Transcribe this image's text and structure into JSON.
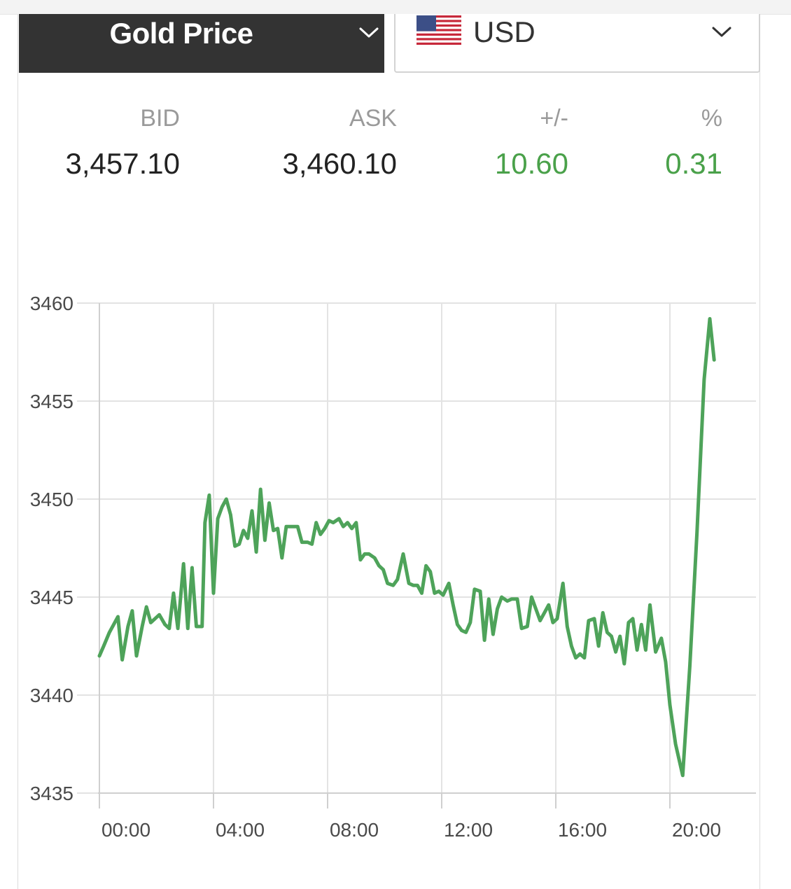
{
  "header": {
    "metal_label": "Gold Price",
    "currency_label": "USD",
    "metal_chevron_icon": "chevron-down-icon",
    "currency_chevron_icon": "chevron-down-icon",
    "flag_icon": "us-flag-icon"
  },
  "quote": {
    "bid_label": "BID",
    "ask_label": "ASK",
    "change_label": "+/-",
    "pct_label": "%",
    "bid": "3,457.10",
    "ask": "3,460.10",
    "change": "10.60",
    "pct": "0.31",
    "positive_color": "#4aa14a"
  },
  "chart_data": {
    "type": "line",
    "title": "",
    "xlabel": "",
    "ylabel": "",
    "ylim": [
      3435,
      3460
    ],
    "yticks": [
      "3460",
      "3455",
      "3450",
      "3445",
      "3440",
      "3435"
    ],
    "xlim": [
      0,
      22.75
    ],
    "xticks": [
      {
        "label": "00:00",
        "x": 0
      },
      {
        "label": "04:00",
        "x": 4
      },
      {
        "label": "08:00",
        "x": 8
      },
      {
        "label": "12:00",
        "x": 12
      },
      {
        "label": "16:00",
        "x": 16
      },
      {
        "label": "20:00",
        "x": 20
      }
    ],
    "grid": true,
    "line_color": "#4ea35a",
    "series": [
      {
        "name": "",
        "points": [
          [
            0.0,
            3442.0
          ],
          [
            0.15,
            3442.5
          ],
          [
            0.35,
            3443.2
          ],
          [
            0.65,
            3444.0
          ],
          [
            0.8,
            3441.8
          ],
          [
            1.0,
            3443.5
          ],
          [
            1.15,
            3444.3
          ],
          [
            1.3,
            3442.0
          ],
          [
            1.5,
            3443.5
          ],
          [
            1.65,
            3444.5
          ],
          [
            1.8,
            3443.7
          ],
          [
            1.95,
            3443.9
          ],
          [
            2.1,
            3444.1
          ],
          [
            2.3,
            3443.6
          ],
          [
            2.45,
            3443.4
          ],
          [
            2.6,
            3445.2
          ],
          [
            2.75,
            3443.4
          ],
          [
            2.95,
            3446.7
          ],
          [
            3.1,
            3443.4
          ],
          [
            3.25,
            3446.5
          ],
          [
            3.4,
            3443.5
          ],
          [
            3.6,
            3443.5
          ],
          [
            3.7,
            3448.8
          ],
          [
            3.85,
            3450.2
          ],
          [
            4.0,
            3445.2
          ],
          [
            4.15,
            3449.0
          ],
          [
            4.3,
            3449.6
          ],
          [
            4.45,
            3450.0
          ],
          [
            4.6,
            3449.2
          ],
          [
            4.75,
            3447.6
          ],
          [
            4.9,
            3447.7
          ],
          [
            5.05,
            3448.4
          ],
          [
            5.2,
            3448.0
          ],
          [
            5.35,
            3449.4
          ],
          [
            5.5,
            3447.3
          ],
          [
            5.65,
            3450.5
          ],
          [
            5.8,
            3447.9
          ],
          [
            5.95,
            3449.8
          ],
          [
            6.1,
            3448.4
          ],
          [
            6.25,
            3448.5
          ],
          [
            6.4,
            3447.0
          ],
          [
            6.55,
            3448.6
          ],
          [
            6.75,
            3448.6
          ],
          [
            6.95,
            3448.6
          ],
          [
            7.1,
            3447.8
          ],
          [
            7.3,
            3447.8
          ],
          [
            7.45,
            3447.7
          ],
          [
            7.6,
            3448.8
          ],
          [
            7.75,
            3448.2
          ],
          [
            7.9,
            3448.5
          ],
          [
            8.05,
            3448.9
          ],
          [
            8.2,
            3448.8
          ],
          [
            8.4,
            3449.0
          ],
          [
            8.55,
            3448.6
          ],
          [
            8.7,
            3448.8
          ],
          [
            8.85,
            3448.5
          ],
          [
            9.0,
            3448.8
          ],
          [
            9.15,
            3446.9
          ],
          [
            9.3,
            3447.2
          ],
          [
            9.45,
            3447.2
          ],
          [
            9.65,
            3447.0
          ],
          [
            9.8,
            3446.6
          ],
          [
            9.95,
            3446.4
          ],
          [
            10.1,
            3445.7
          ],
          [
            10.3,
            3445.6
          ],
          [
            10.45,
            3445.9
          ],
          [
            10.65,
            3447.2
          ],
          [
            10.85,
            3445.7
          ],
          [
            11.0,
            3445.6
          ],
          [
            11.15,
            3445.6
          ],
          [
            11.3,
            3445.2
          ],
          [
            11.45,
            3446.6
          ],
          [
            11.6,
            3446.3
          ],
          [
            11.75,
            3445.2
          ],
          [
            11.9,
            3445.3
          ],
          [
            12.05,
            3445.1
          ],
          [
            12.25,
            3445.7
          ],
          [
            12.4,
            3444.6
          ],
          [
            12.55,
            3443.6
          ],
          [
            12.7,
            3443.3
          ],
          [
            12.85,
            3443.2
          ],
          [
            13.0,
            3443.7
          ],
          [
            13.15,
            3445.4
          ],
          [
            13.35,
            3445.3
          ],
          [
            13.5,
            3442.8
          ],
          [
            13.65,
            3444.9
          ],
          [
            13.8,
            3443.1
          ],
          [
            13.95,
            3444.4
          ],
          [
            14.1,
            3445.0
          ],
          [
            14.3,
            3444.8
          ],
          [
            14.45,
            3444.9
          ],
          [
            14.65,
            3444.9
          ],
          [
            14.8,
            3443.4
          ],
          [
            15.0,
            3443.5
          ],
          [
            15.15,
            3445.0
          ],
          [
            15.3,
            3444.4
          ],
          [
            15.45,
            3443.8
          ],
          [
            15.6,
            3444.2
          ],
          [
            15.75,
            3444.6
          ],
          [
            15.9,
            3443.7
          ],
          [
            16.05,
            3443.9
          ],
          [
            16.25,
            3445.7
          ],
          [
            16.4,
            3443.5
          ],
          [
            16.55,
            3442.5
          ],
          [
            16.7,
            3441.9
          ],
          [
            16.85,
            3442.1
          ],
          [
            17.0,
            3441.9
          ],
          [
            17.15,
            3443.8
          ],
          [
            17.35,
            3443.9
          ],
          [
            17.5,
            3442.5
          ],
          [
            17.65,
            3444.2
          ],
          [
            17.8,
            3443.2
          ],
          [
            17.95,
            3443.0
          ],
          [
            18.1,
            3442.2
          ],
          [
            18.25,
            3443.0
          ],
          [
            18.4,
            3441.6
          ],
          [
            18.55,
            3443.7
          ],
          [
            18.7,
            3443.9
          ],
          [
            18.85,
            3442.3
          ],
          [
            19.0,
            3443.6
          ],
          [
            19.15,
            3442.3
          ],
          [
            19.3,
            3444.6
          ],
          [
            19.5,
            3442.2
          ],
          [
            19.7,
            3442.9
          ],
          [
            19.85,
            3441.7
          ],
          [
            20.0,
            3439.5
          ],
          [
            20.2,
            3437.5
          ],
          [
            20.45,
            3435.9
          ],
          [
            20.7,
            3441.5
          ],
          [
            20.95,
            3448.3
          ],
          [
            21.2,
            3456.1
          ],
          [
            21.4,
            3459.2
          ],
          [
            21.55,
            3457.1
          ]
        ]
      }
    ]
  }
}
